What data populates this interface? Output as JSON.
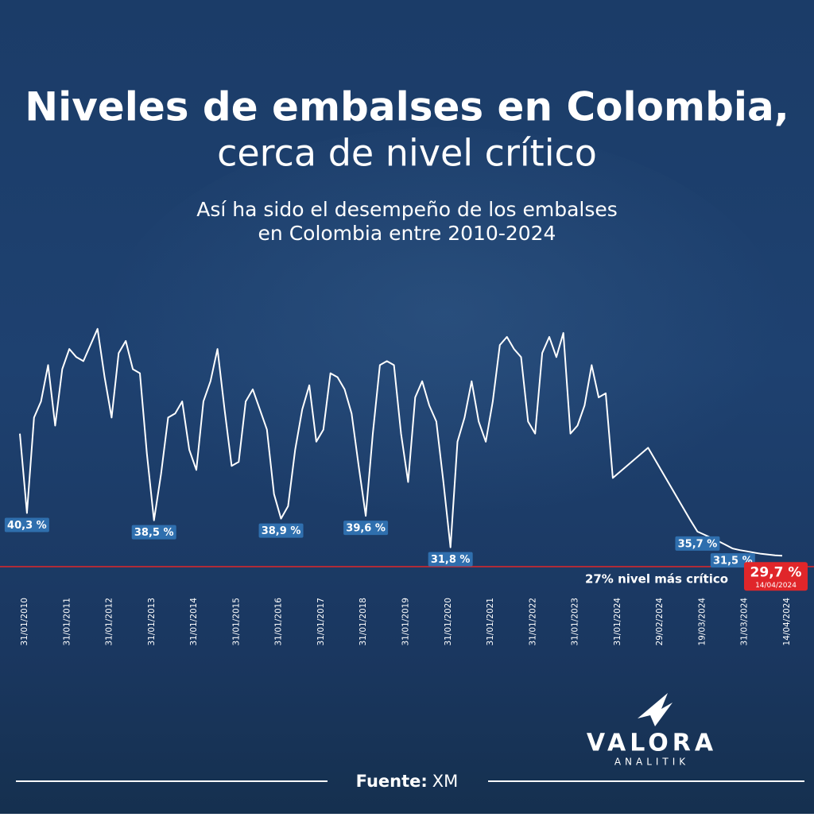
{
  "chart_data": {
    "type": "line",
    "title": "Niveles de embalses en Colombia,",
    "title_line2": "cerca de nivel crítico",
    "subtitle": "Así ha sido el desempeño de los embalses",
    "subtitle_line2": "en Colombia entre 2010-2024",
    "color": "#ffffff",
    "categories": [
      "31/01/2010",
      null,
      null,
      null,
      null,
      null,
      "31/01/2011",
      null,
      null,
      null,
      null,
      null,
      "31/01/2012",
      null,
      null,
      null,
      null,
      null,
      "31/01/2013",
      null,
      null,
      null,
      null,
      null,
      "31/01/2014",
      null,
      null,
      null,
      null,
      null,
      "31/01/2015",
      null,
      null,
      null,
      null,
      null,
      "31/01/2016",
      null,
      null,
      null,
      null,
      null,
      "31/01/2017",
      null,
      null,
      null,
      null,
      null,
      "31/01/2018",
      null,
      null,
      null,
      null,
      null,
      "31/01/2019",
      null,
      null,
      null,
      null,
      null,
      "31/01/2020",
      null,
      null,
      null,
      null,
      null,
      "31/01/2021",
      null,
      null,
      null,
      null,
      null,
      "31/01/2022",
      null,
      null,
      null,
      null,
      null,
      "31/01/2023",
      null,
      null,
      null,
      null,
      null,
      "31/01/2024",
      null,
      null,
      null,
      null,
      null,
      "29/02/2024",
      null,
      null,
      null,
      null,
      null,
      "19/03/2024",
      null,
      null,
      null,
      null,
      null,
      "31/03/2024",
      null,
      null,
      null,
      null,
      null,
      "14/04/2024"
    ],
    "values": [
      60,
      40.3,
      64,
      68,
      77,
      62,
      76,
      81,
      79,
      78,
      82,
      86,
      74,
      64,
      80,
      83,
      76,
      75,
      55,
      38.5,
      50,
      64,
      65,
      68,
      56,
      51,
      68,
      73,
      81,
      66,
      52,
      53,
      68,
      71,
      66,
      61,
      45,
      38.9,
      42,
      56,
      66,
      72,
      58,
      61,
      75,
      74,
      71,
      65,
      52,
      39.6,
      60,
      77,
      78,
      77,
      60,
      48,
      69,
      73,
      67,
      63,
      48,
      31.8,
      58,
      64,
      73,
      63,
      58,
      68,
      82,
      84,
      81,
      79,
      63,
      60,
      80,
      84,
      79,
      85,
      60,
      62,
      67,
      77,
      69,
      70,
      49,
      50.5,
      52,
      53.5,
      55,
      56.5,
      53.5,
      50.5,
      47.5,
      44.5,
      41.5,
      38.5,
      35.7,
      34.9,
      34.1,
      33.3,
      32.4,
      31.5,
      31.1,
      30.8,
      30.5,
      30.2,
      30.0,
      29.8,
      29.7
    ],
    "value_labels": [
      null,
      "40,3 %",
      null,
      null,
      null,
      null,
      null,
      null,
      null,
      null,
      null,
      null,
      null,
      null,
      null,
      null,
      null,
      null,
      null,
      "38,5 %",
      null,
      null,
      null,
      null,
      null,
      null,
      null,
      null,
      null,
      null,
      null,
      null,
      null,
      null,
      null,
      null,
      null,
      "38,9 %",
      null,
      null,
      null,
      null,
      null,
      null,
      null,
      null,
      null,
      null,
      null,
      "39,6 %",
      null,
      null,
      null,
      null,
      null,
      null,
      null,
      null,
      null,
      null,
      null,
      "31,8 %",
      null,
      null,
      null,
      null,
      null,
      null,
      null,
      null,
      null,
      null,
      null,
      null,
      null,
      null,
      null,
      null,
      null,
      null,
      null,
      null,
      null,
      null,
      null,
      null,
      null,
      null,
      null,
      null,
      null,
      null,
      null,
      null,
      null,
      null,
      "35,7 %",
      null,
      null,
      null,
      null,
      "31,5 %",
      null,
      null,
      null,
      null,
      null,
      null,
      "29,7 %"
    ],
    "ylim": [
      20,
      90
    ],
    "reference": {
      "value": 27,
      "label": "27% nivel más crítico",
      "color": "#e0262a"
    },
    "source_label": "Fuente:",
    "source": "XM"
  },
  "branding": {
    "name": "VALORA",
    "tagline": "ANALITIK"
  }
}
